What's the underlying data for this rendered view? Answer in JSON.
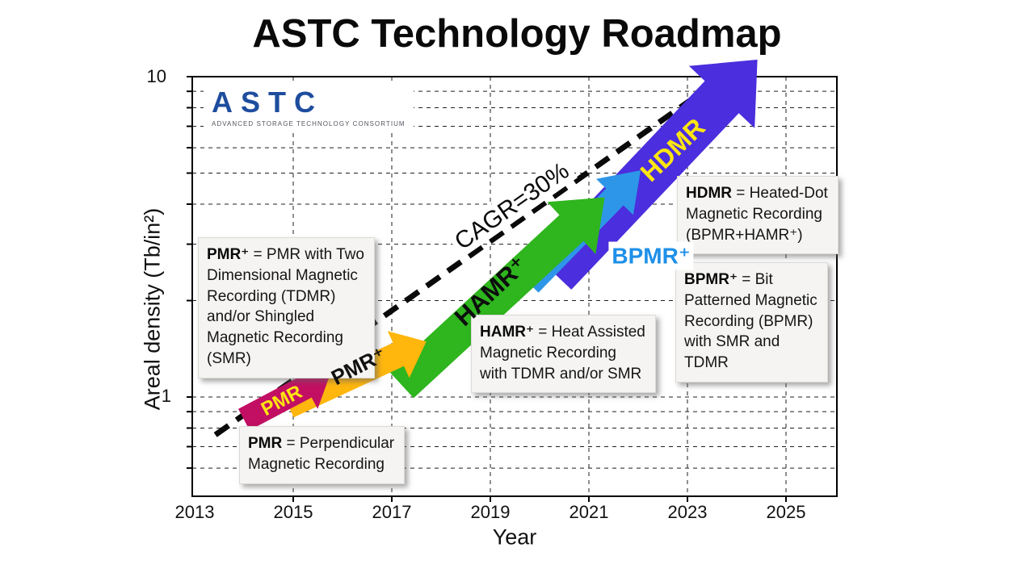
{
  "page": {
    "title": "ASTC Technology Roadmap"
  },
  "logo": {
    "name": "ASTC",
    "tagline": "ADVANCED STORAGE TECHNOLOGY CONSORTIUM"
  },
  "chart_data": {
    "type": "line",
    "title": "ASTC Technology Roadmap",
    "xlabel": "Year",
    "ylabel": "Areal density (Tb/in²)",
    "x_ticks": [
      "2013",
      "2015",
      "2017",
      "2019",
      "2021",
      "2023",
      "2025"
    ],
    "y_ticks": [
      "1",
      "10"
    ],
    "y_scale": "log",
    "xlim": [
      2013,
      2026
    ],
    "ylim": [
      0.49,
      10
    ],
    "grid": {
      "h_minor": [
        0.6,
        0.7,
        0.8,
        0.9,
        1,
        2,
        3,
        4,
        5,
        6,
        7,
        8,
        9
      ],
      "v_years": [
        2015,
        2017,
        2019,
        2021,
        2023,
        2025
      ]
    },
    "cagr_line": {
      "label": "CAGR=30%",
      "style": "dashed",
      "color": "#0a0a0a",
      "from": [
        2013.42,
        0.762
      ],
      "to": [
        2023.7,
        9.9
      ]
    },
    "segments": [
      {
        "id": "pmr",
        "name": "PMR",
        "from": [
          2014.0,
          0.85
        ],
        "to": [
          2015.75,
          1.18
        ],
        "color": "#C20F63",
        "label_color": "#FFE512",
        "body_w": 30,
        "head_w": 62,
        "head_len": 34
      },
      {
        "id": "pmr-plus",
        "name": "PMR⁺",
        "from": [
          2014.9,
          0.94
        ],
        "to": [
          2017.7,
          1.49
        ],
        "color": "#FFB60D",
        "label_color": "#111111",
        "body_w": 32,
        "head_w": 64,
        "head_len": 38
      },
      {
        "id": "hamr-plus",
        "name": "HAMR⁺",
        "from": [
          2017.2,
          1.09
        ],
        "to": [
          2021.32,
          4.2
        ],
        "color": "#2FB51E",
        "label_color": "#0d0d0d",
        "body_w": 44,
        "head_w": 88,
        "head_len": 56
      },
      {
        "id": "bpmr-plus",
        "name": "BPMR⁺",
        "from": [
          2019.8,
          2.25
        ],
        "to": [
          2022.05,
          5.1
        ],
        "color": "#2E96E8",
        "label_color": "#1E90E8",
        "body_w": 30,
        "head_w": 64,
        "head_len": 46
      },
      {
        "id": "hdmr",
        "name": "HDMR",
        "from": [
          2020.3,
          2.43
        ],
        "to": [
          2024.42,
          11.3
        ],
        "color": "#4B2EDD",
        "label_color": "#FFE512",
        "body_w": 58,
        "head_w": 112,
        "head_len": 64
      }
    ]
  },
  "definitions": {
    "pmr_plus": {
      "term": "PMR⁺",
      "def": " = PMR with Two\nDimensional Magnetic\nRecording (TDMR)\nand/or Shingled\nMagnetic Recording\n(SMR)"
    },
    "pmr": {
      "term": "PMR",
      "def": " = Perpendicular\nMagnetic Recording"
    },
    "hamr": {
      "term": "HAMR⁺",
      "def": " = Heat Assisted\nMagnetic Recording\nwith TDMR and/or SMR"
    },
    "hdmr": {
      "term": "HDMR",
      "def": " = Heated-Dot\nMagnetic Recording\n(BPMR+HAMR⁺)"
    },
    "bpmr": {
      "term": "BPMR⁺",
      "def": " = Bit\nPatterned Magnetic\nRecording (BPMR)\nwith SMR and\nTDMR"
    }
  }
}
